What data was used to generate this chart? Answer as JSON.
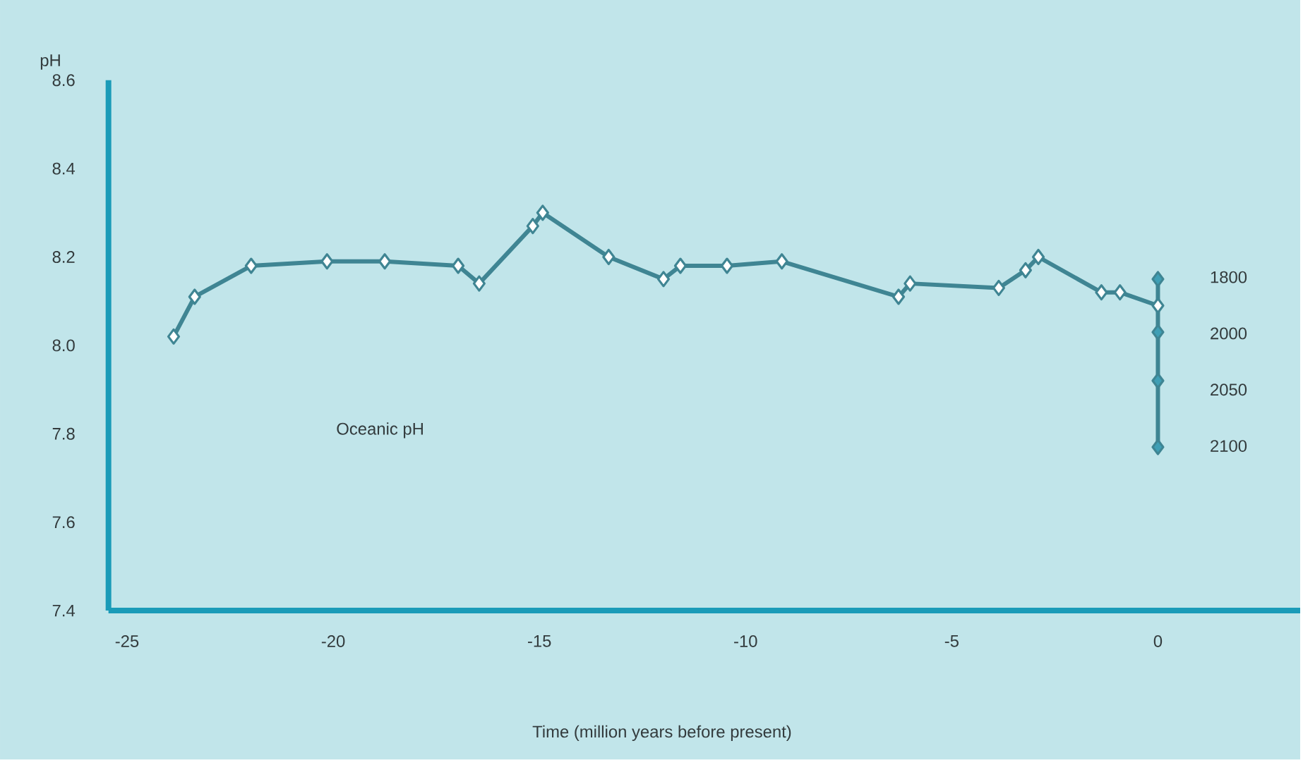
{
  "chart_data": {
    "type": "line",
    "xlabel": "Time (million years before present)",
    "ylabel": "pH",
    "xlim": [
      -25.45,
      3.45
    ],
    "ylim": [
      7.4,
      8.6
    ],
    "xticks": [
      -25,
      -20,
      -15,
      -10,
      -5,
      0
    ],
    "yticks": [
      {
        "value": 7.4,
        "label": "7.4"
      },
      {
        "value": 7.6,
        "label": "7.6"
      },
      {
        "value": 7.8,
        "label": "7.8"
      },
      {
        "value": 8.0,
        "label": "8.0"
      },
      {
        "value": 8.2,
        "label": "8.2"
      },
      {
        "value": 8.4,
        "label": "8.4"
      },
      {
        "value": 8.6,
        "label": "8.6"
      }
    ],
    "marker": "diamond",
    "grid": false,
    "series": [
      {
        "color": "#3f8593",
        "x": [
          -23.87,
          -23.36,
          -21.99,
          -20.15,
          -18.75,
          -16.97,
          -16.46,
          -15.16,
          -14.92,
          -13.32,
          -11.99,
          -11.58,
          -10.45,
          -9.12,
          -6.29,
          -6.01,
          -3.86,
          -3.21,
          -2.9,
          -1.37,
          -0.92,
          0
        ],
        "values": [
          8.02,
          8.11,
          8.18,
          8.19,
          8.19,
          8.18,
          8.14,
          8.27,
          8.3,
          8.2,
          8.15,
          8.18,
          8.18,
          8.19,
          8.11,
          8.14,
          8.13,
          8.17,
          8.2,
          8.12,
          8.12,
          8.09
        ]
      },
      {
        "color": "#3f9fb5",
        "x": [
          0,
          0,
          0,
          0
        ],
        "values": [
          8.15,
          8.03,
          7.92,
          7.77
        ]
      }
    ],
    "annotations": [
      "Oceanic pH",
      "1800",
      "2000",
      "2050",
      "2100"
    ]
  }
}
